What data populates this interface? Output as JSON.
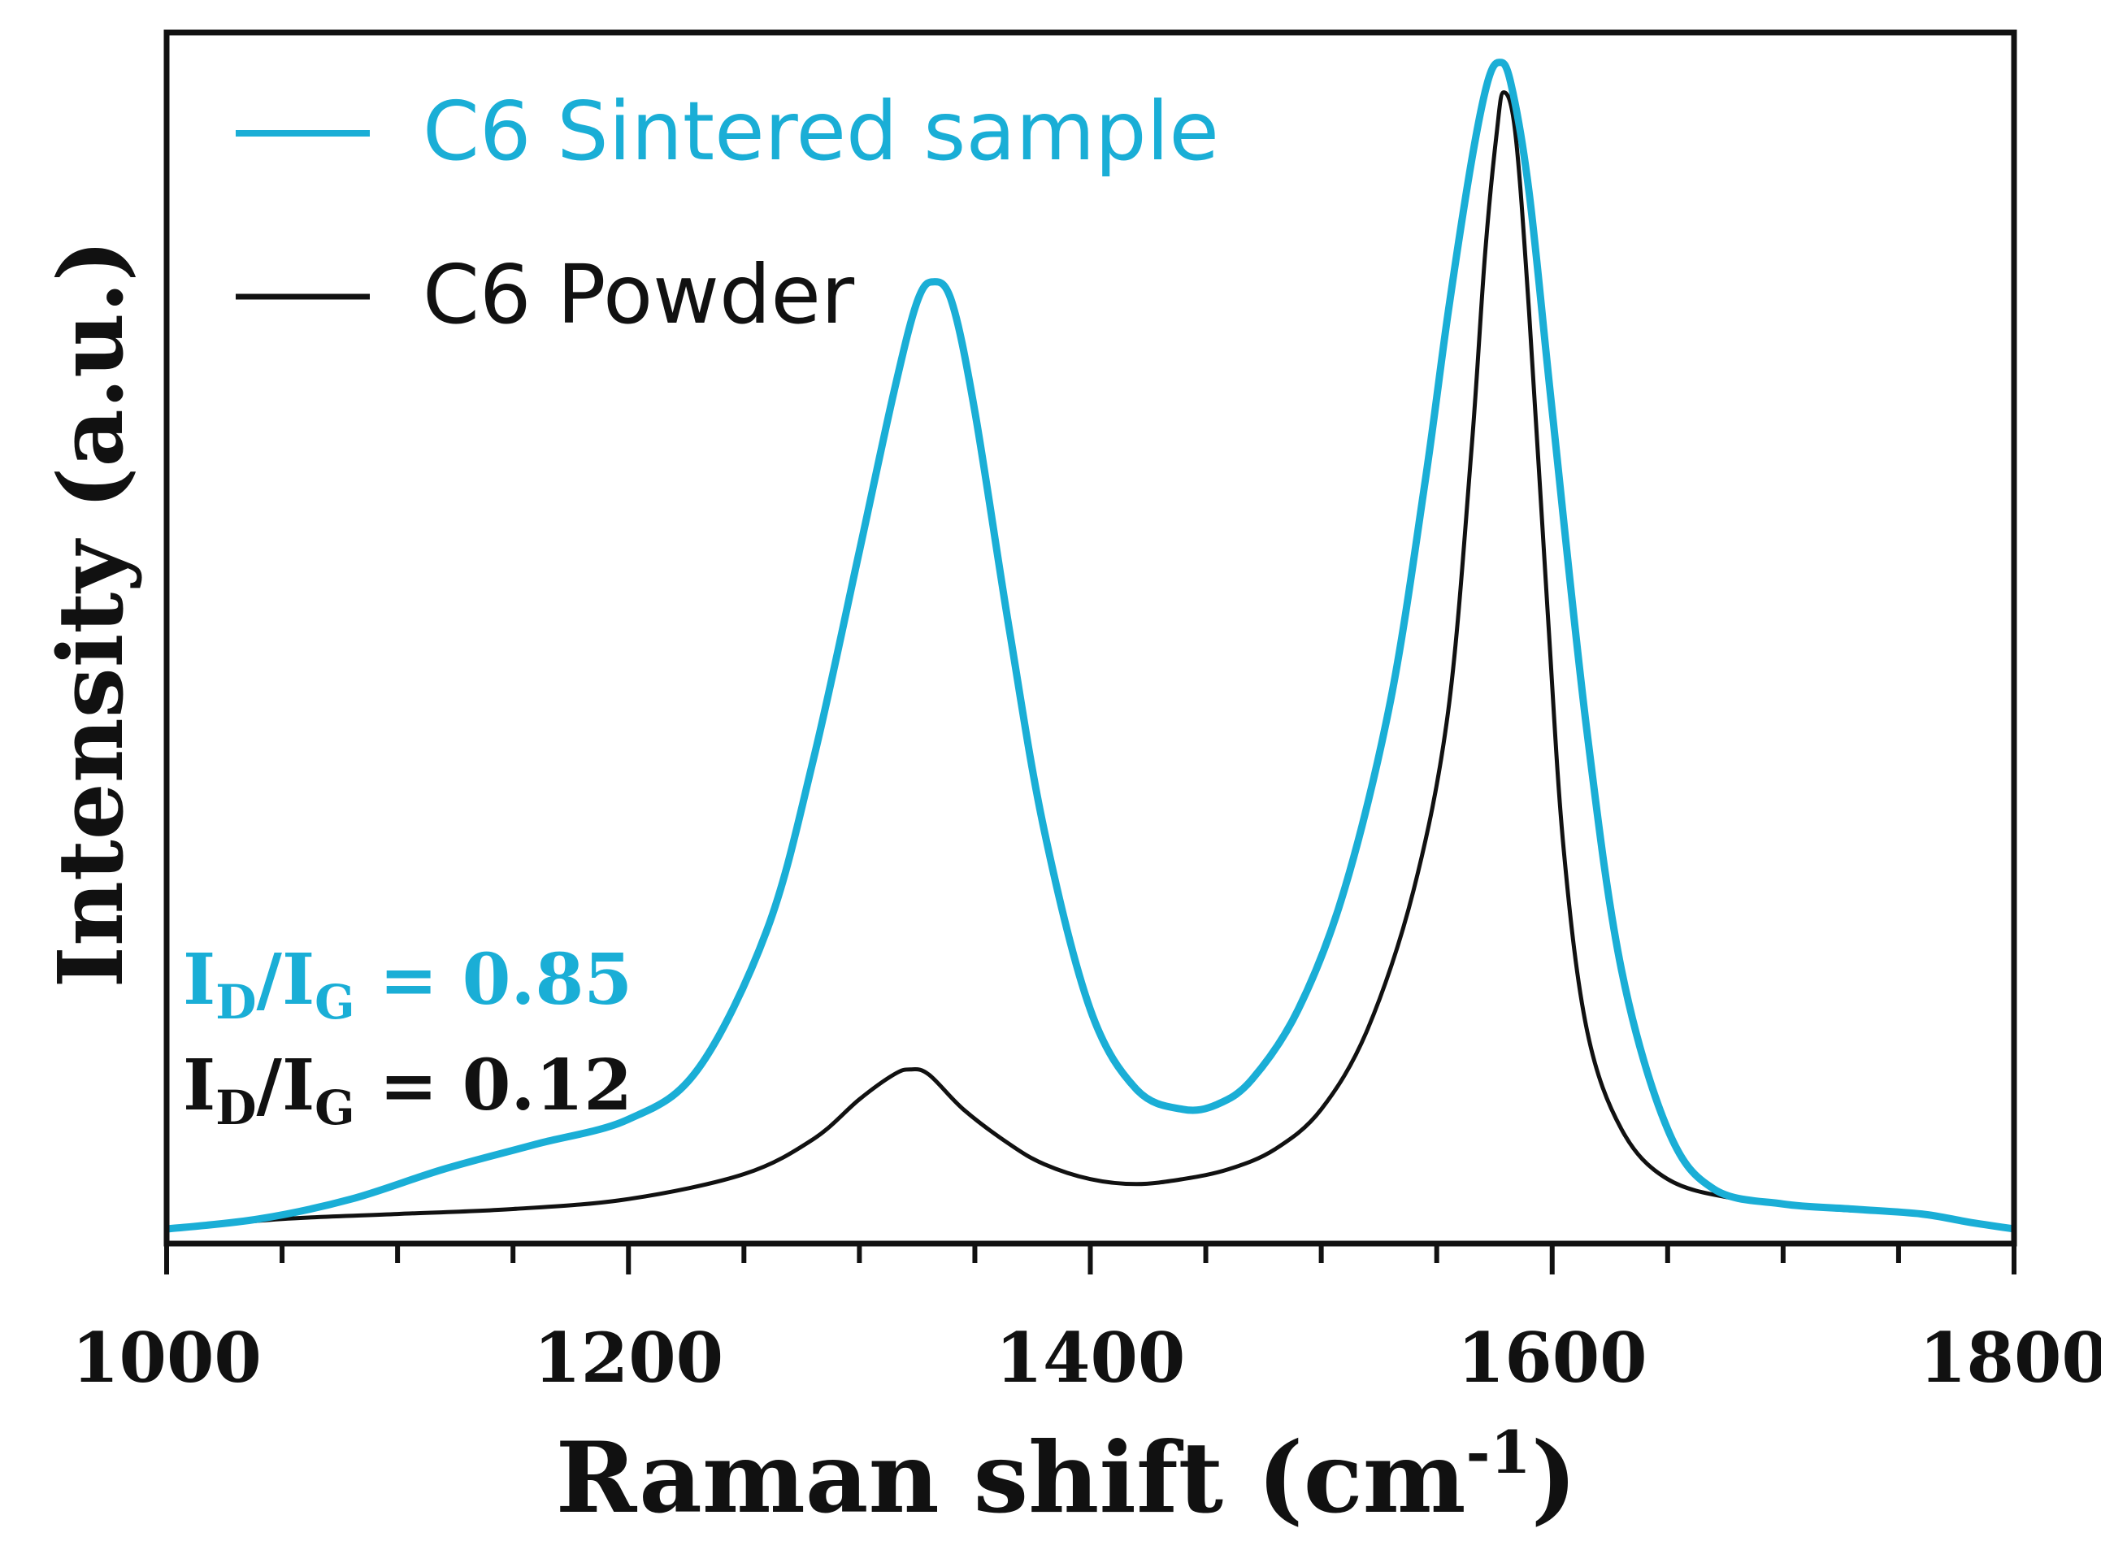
{
  "chart_data": {
    "type": "line",
    "title": "",
    "xlabel": "Raman shift (cm",
    "xlabel_sup": "-1",
    "xlabel_close": ")",
    "ylabel": "Intensity (a.u.)",
    "xlim": [
      1000,
      1800
    ],
    "ylim": [
      0,
      1.2
    ],
    "x_ticks": [
      1000,
      1200,
      1400,
      1600,
      1800
    ],
    "x_minor_step": 50,
    "grid": false,
    "legend_position": "top-left",
    "series": [
      {
        "name": "C6 Sintered sample",
        "color": "#1aaed6",
        "x": [
          1000,
          1040,
          1080,
          1120,
          1160,
          1200,
          1230,
          1260,
          1280,
          1300,
          1315,
          1325,
          1332,
          1340,
          1350,
          1365,
          1380,
          1400,
          1420,
          1440,
          1455,
          1470,
          1490,
          1510,
          1530,
          1545,
          1555,
          1565,
          1572,
          1577,
          1582,
          1590,
          1600,
          1615,
          1630,
          1650,
          1670,
          1700,
          1730,
          1760,
          1780,
          1800
        ],
        "y": [
          0.0,
          0.01,
          0.03,
          0.06,
          0.085,
          0.11,
          0.16,
          0.3,
          0.47,
          0.68,
          0.84,
          0.93,
          0.95,
          0.93,
          0.82,
          0.6,
          0.4,
          0.22,
          0.14,
          0.12,
          0.125,
          0.15,
          0.22,
          0.34,
          0.53,
          0.75,
          0.92,
          1.07,
          1.15,
          1.17,
          1.15,
          1.04,
          0.82,
          0.5,
          0.26,
          0.1,
          0.04,
          0.025,
          0.02,
          0.015,
          0.007,
          0.0
        ]
      },
      {
        "name": "C6 Powder",
        "color": "#111111",
        "x": [
          1000,
          1050,
          1100,
          1150,
          1200,
          1250,
          1280,
          1300,
          1315,
          1322,
          1330,
          1345,
          1365,
          1380,
          1400,
          1420,
          1440,
          1460,
          1480,
          1500,
          1520,
          1540,
          1555,
          1565,
          1571,
          1576,
          1579,
          1584,
          1590,
          1598,
          1605,
          1615,
          1630,
          1650,
          1680,
          1720,
          1760,
          1780,
          1800
        ],
        "y": [
          0.0,
          0.01,
          0.015,
          0.02,
          0.03,
          0.055,
          0.09,
          0.13,
          0.155,
          0.16,
          0.155,
          0.12,
          0.085,
          0.065,
          0.05,
          0.045,
          0.05,
          0.06,
          0.08,
          0.12,
          0.2,
          0.34,
          0.52,
          0.78,
          0.98,
          1.1,
          1.14,
          1.1,
          0.92,
          0.62,
          0.38,
          0.2,
          0.1,
          0.05,
          0.03,
          0.02,
          0.015,
          0.008,
          0.0
        ]
      }
    ],
    "annotations": [
      {
        "name": "sintered-ratio",
        "text_base": "I",
        "sub1": "D",
        "slash": "/I",
        "sub2": "G",
        "value": " = 0.85",
        "color": "#1aaed6"
      },
      {
        "name": "powder-ratio",
        "text_base": "I",
        "sub1": "D",
        "slash": "/I",
        "sub2": "G",
        "value": " = 0.12",
        "color": "#111111"
      }
    ]
  }
}
